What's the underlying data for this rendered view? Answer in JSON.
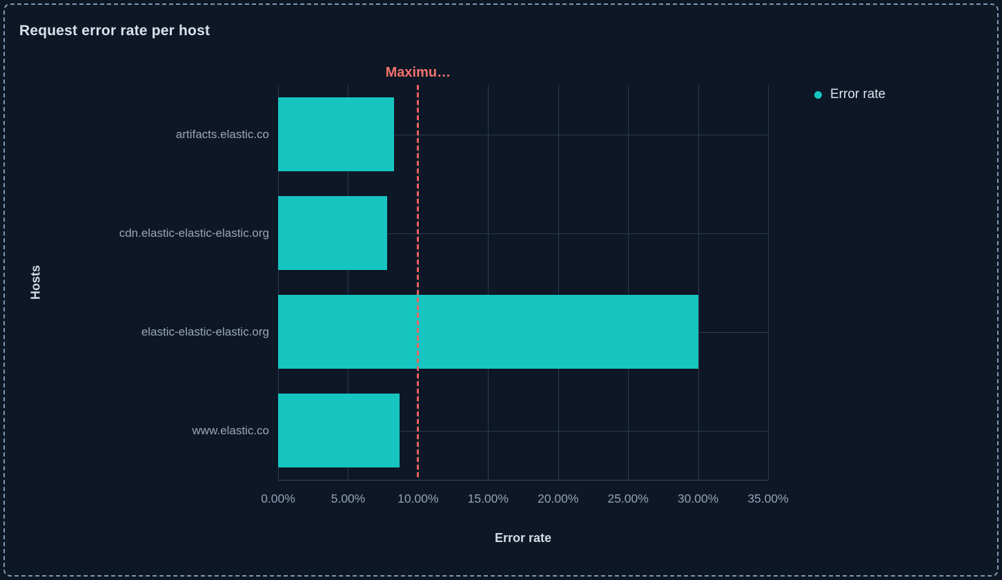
{
  "chart_data": {
    "type": "bar",
    "orientation": "horizontal",
    "title": "Request error rate per host",
    "xlabel": "Error rate",
    "ylabel": "Hosts",
    "categories": [
      "artifacts.elastic.co",
      "cdn.elastic-elastic-elastic.org",
      "elastic-elastic-elastic.org",
      "www.elastic.co"
    ],
    "values": [
      8.3,
      7.8,
      30.0,
      8.7
    ],
    "unit": "%",
    "xlim": [
      0,
      35
    ],
    "xtick_values": [
      0,
      5,
      10,
      15,
      20,
      25,
      30,
      35
    ],
    "xticks": [
      "0.00%",
      "5.00%",
      "10.00%",
      "15.00%",
      "20.00%",
      "25.00%",
      "30.00%",
      "35.00%"
    ],
    "grid": true,
    "legend": {
      "position": "top-right",
      "items": [
        {
          "label": "Error rate",
          "color": "#16c5c0"
        }
      ]
    },
    "threshold": {
      "label": "Maximu…",
      "value": 10,
      "style": "dashed",
      "color": "#ef6260",
      "label_color": "#f4726d"
    },
    "colors": {
      "background": "#0d1726",
      "panel_border": "#8199b5",
      "bar": "#16c5c0",
      "grid": "#2b3a52",
      "title_text": "#dae1eb",
      "tick_text": "#9aa6ba"
    }
  }
}
